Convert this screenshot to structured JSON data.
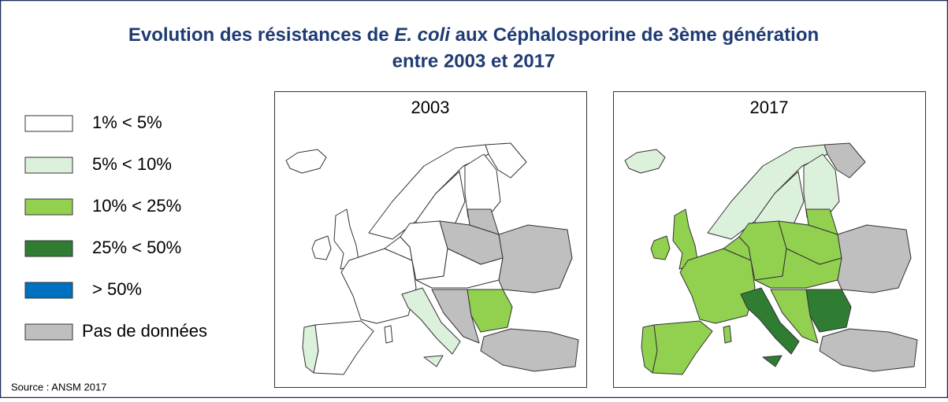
{
  "title": [
    "Evolution des résistances de",
    "E. coli",
    "aux Céphalosporine de 3ème génération",
    "entre 2003 et 2017"
  ],
  "legend": {
    "items": [
      {
        "label": "1% < 5%",
        "color": "#ffffff"
      },
      {
        "label": "5% < 10%",
        "color": "#dcf1dc"
      },
      {
        "label": "10% < 25%",
        "color": "#92d050"
      },
      {
        "label": "25% < 50%",
        "color": "#2f7d32"
      },
      {
        "label": "> 50%",
        "color": "#0070c0"
      },
      {
        "label": "Pas de données",
        "color": "#bfbfbf"
      }
    ]
  },
  "maps": [
    {
      "label": "2003"
    },
    {
      "label": "2017"
    }
  ],
  "source": "Source : ANSM 2017"
}
